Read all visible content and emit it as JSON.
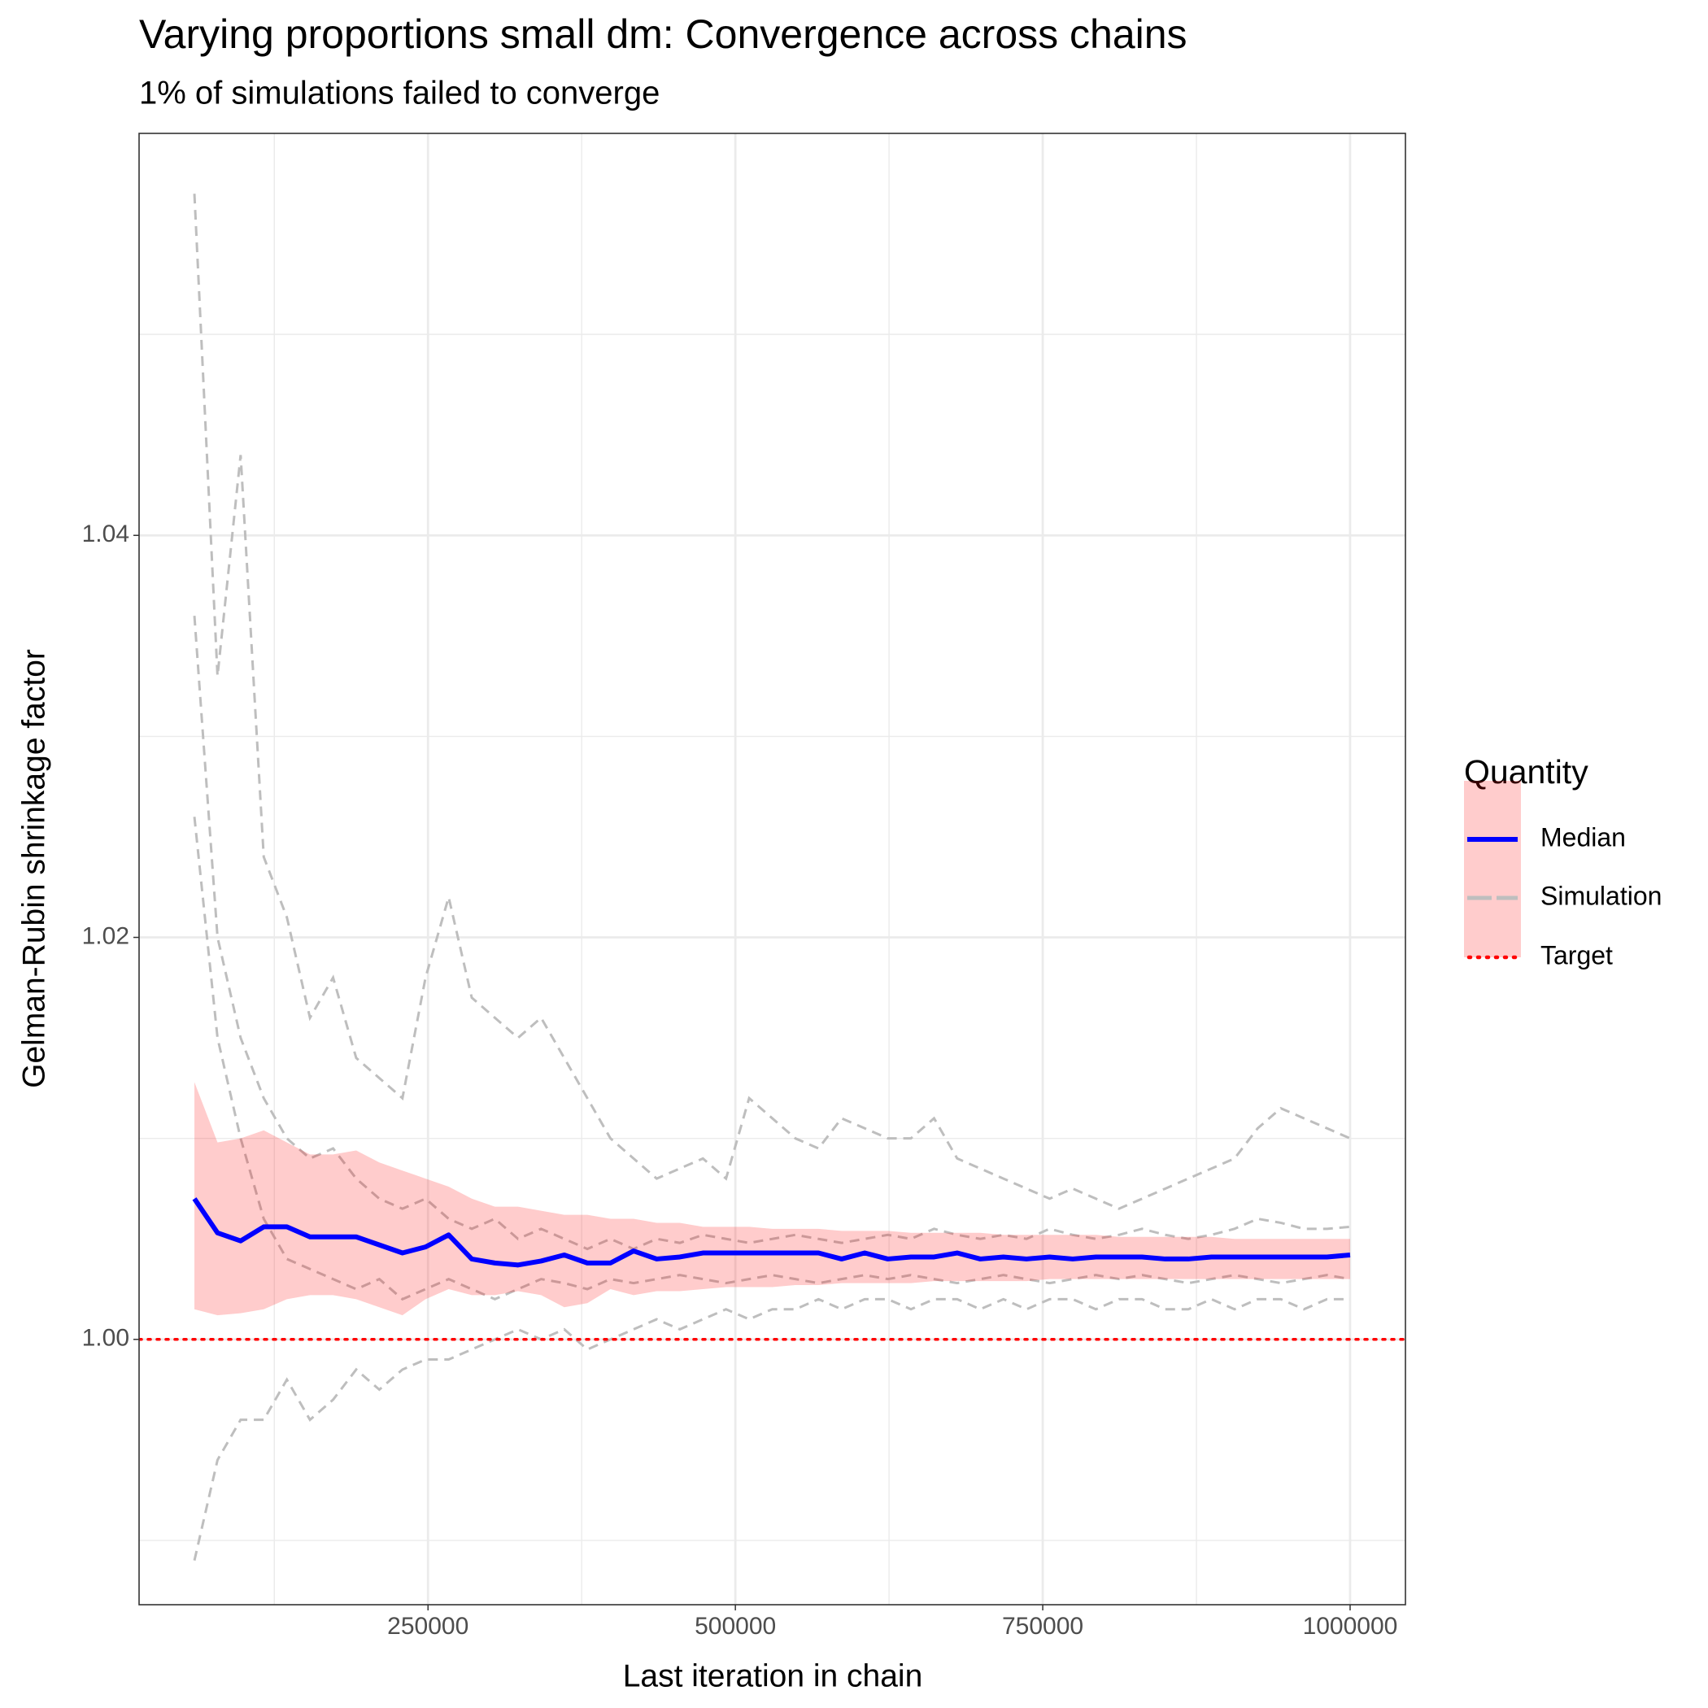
{
  "chart_data": {
    "type": "line",
    "title": "Varying proportions small dm: Convergence across chains",
    "subtitle": "1% of simulations failed to converge",
    "x_label": "Last iteration in chain",
    "y_label": "Gelman-Rubin shrinkage factor",
    "xlim": [
      15000,
      1045000
    ],
    "xticks": [
      250000,
      500000,
      750000,
      1000000
    ],
    "ylim": [
      0.9868,
      1.06
    ],
    "yticks": [
      {
        "value": 1.0,
        "label": "1.00"
      },
      {
        "value": 1.02,
        "label": "1.02"
      },
      {
        "value": 1.04,
        "label": "1.04"
      }
    ],
    "grid": true,
    "legend": {
      "title": "Quantity",
      "position": "right"
    },
    "x": [
      60000,
      78800,
      97600,
      116400,
      135200,
      154000,
      172800,
      191600,
      210400,
      229200,
      248000,
      266800,
      285600,
      304400,
      323200,
      342000,
      360800,
      379600,
      398400,
      417200,
      436000,
      454800,
      473600,
      492400,
      511200,
      530000,
      548800,
      567600,
      586400,
      605200,
      624000,
      642800,
      661600,
      680400,
      699200,
      718000,
      736800,
      755600,
      774400,
      793200,
      812000,
      830800,
      849600,
      868400,
      887200,
      906000,
      924800,
      943600,
      962400,
      981200,
      1000000
    ],
    "median": {
      "name": "Median",
      "color": "#0000ff",
      "values": [
        1.007,
        1.0053,
        1.0049,
        1.0056,
        1.0056,
        1.0051,
        1.0051,
        1.0051,
        1.0047,
        1.0043,
        1.0046,
        1.0052,
        1.004,
        1.0038,
        1.0037,
        1.0039,
        1.0042,
        1.0038,
        1.0038,
        1.0044,
        1.004,
        1.0041,
        1.0043,
        1.0043,
        1.0043,
        1.0043,
        1.0043,
        1.0043,
        1.004,
        1.0043,
        1.004,
        1.0041,
        1.0041,
        1.0043,
        1.004,
        1.0041,
        1.004,
        1.0041,
        1.004,
        1.0041,
        1.0041,
        1.0041,
        1.004,
        1.004,
        1.0041,
        1.0041,
        1.0041,
        1.0041,
        1.0041,
        1.0041,
        1.0042
      ]
    },
    "ribbon": {
      "color": "#ff0000",
      "opacity": 0.2,
      "upper": [
        1.0128,
        1.0098,
        1.01,
        1.0104,
        1.0098,
        1.0092,
        1.0092,
        1.0094,
        1.0088,
        1.0084,
        1.008,
        1.0076,
        1.007,
        1.0066,
        1.0066,
        1.0064,
        1.0062,
        1.0062,
        1.006,
        1.006,
        1.0058,
        1.0058,
        1.0056,
        1.0056,
        1.0056,
        1.0055,
        1.0055,
        1.0055,
        1.0054,
        1.0054,
        1.0054,
        1.0053,
        1.0053,
        1.0053,
        1.0053,
        1.0052,
        1.0052,
        1.0052,
        1.0052,
        1.0052,
        1.0051,
        1.0051,
        1.0051,
        1.0051,
        1.0051,
        1.005,
        1.005,
        1.005,
        1.005,
        1.005,
        1.005
      ],
      "lower": [
        1.0015,
        1.0012,
        1.0013,
        1.0015,
        1.002,
        1.0022,
        1.0022,
        1.002,
        1.0016,
        1.0012,
        1.002,
        1.0025,
        1.0022,
        1.0022,
        1.0024,
        1.0022,
        1.0016,
        1.0018,
        1.0025,
        1.0022,
        1.0024,
        1.0024,
        1.0025,
        1.0026,
        1.0026,
        1.0026,
        1.0027,
        1.0027,
        1.0028,
        1.0028,
        1.0028,
        1.0028,
        1.0029,
        1.0029,
        1.0029,
        1.0029,
        1.0029,
        1.003,
        1.003,
        1.003,
        1.003,
        1.003,
        1.003,
        1.003,
        1.003,
        1.003,
        1.003,
        1.003,
        1.003,
        1.003,
        1.003
      ]
    },
    "simulations": {
      "name": "Simulation",
      "color": "#bebebe",
      "lines": [
        [
          1.057,
          1.033,
          1.044,
          1.024,
          1.021,
          1.016,
          1.018,
          1.014,
          1.013,
          1.012,
          1.018,
          1.022,
          1.017,
          1.016,
          1.015,
          1.016,
          1.014,
          1.012,
          1.01,
          1.009,
          1.008,
          1.0085,
          1.009,
          1.008,
          1.012,
          1.011,
          1.01,
          1.0095,
          1.011,
          1.0105,
          1.01,
          1.01,
          1.011,
          1.009,
          1.0085,
          1.008,
          1.0075,
          1.007,
          1.0075,
          1.007,
          1.0065,
          1.007,
          1.0075,
          1.008,
          1.0085,
          1.009,
          1.0105,
          1.0115,
          1.011,
          1.0105,
          1.01
        ],
        [
          0.989,
          0.994,
          0.996,
          0.996,
          0.998,
          0.996,
          0.997,
          0.9985,
          0.9975,
          0.9985,
          0.999,
          0.999,
          0.9995,
          1.0,
          1.0005,
          1.0,
          1.0005,
          0.9995,
          1.0,
          1.0005,
          1.001,
          1.0005,
          1.001,
          1.0015,
          1.001,
          1.0015,
          1.0015,
          1.002,
          1.0015,
          1.002,
          1.002,
          1.0015,
          1.002,
          1.002,
          1.0015,
          1.002,
          1.0015,
          1.002,
          1.002,
          1.0015,
          1.002,
          1.002,
          1.0015,
          1.0015,
          1.002,
          1.0015,
          1.002,
          1.002,
          1.0015,
          1.002,
          1.002
        ],
        [
          1.036,
          1.02,
          1.015,
          1.012,
          1.01,
          1.009,
          1.0095,
          1.008,
          1.007,
          1.0065,
          1.007,
          1.006,
          1.0055,
          1.006,
          1.005,
          1.0055,
          1.005,
          1.0045,
          1.005,
          1.0045,
          1.005,
          1.0048,
          1.0052,
          1.005,
          1.0048,
          1.005,
          1.0052,
          1.005,
          1.0048,
          1.005,
          1.0052,
          1.005,
          1.0055,
          1.0052,
          1.005,
          1.0052,
          1.005,
          1.0055,
          1.0052,
          1.005,
          1.0052,
          1.0055,
          1.0052,
          1.005,
          1.0052,
          1.0055,
          1.006,
          1.0058,
          1.0055,
          1.0055,
          1.0056
        ],
        [
          1.026,
          1.015,
          1.01,
          1.006,
          1.004,
          1.0035,
          1.003,
          1.0025,
          1.003,
          1.002,
          1.0025,
          1.003,
          1.0025,
          1.002,
          1.0025,
          1.003,
          1.0028,
          1.0025,
          1.003,
          1.0028,
          1.003,
          1.0032,
          1.003,
          1.0028,
          1.003,
          1.0032,
          1.003,
          1.0028,
          1.003,
          1.0032,
          1.003,
          1.0032,
          1.003,
          1.0028,
          1.003,
          1.0032,
          1.003,
          1.0028,
          1.003,
          1.0032,
          1.003,
          1.0032,
          1.003,
          1.0028,
          1.003,
          1.0032,
          1.003,
          1.0028,
          1.003,
          1.0032,
          1.003
        ]
      ]
    },
    "target": {
      "name": "Target",
      "value": 1.0,
      "color": "#ff0000"
    }
  }
}
